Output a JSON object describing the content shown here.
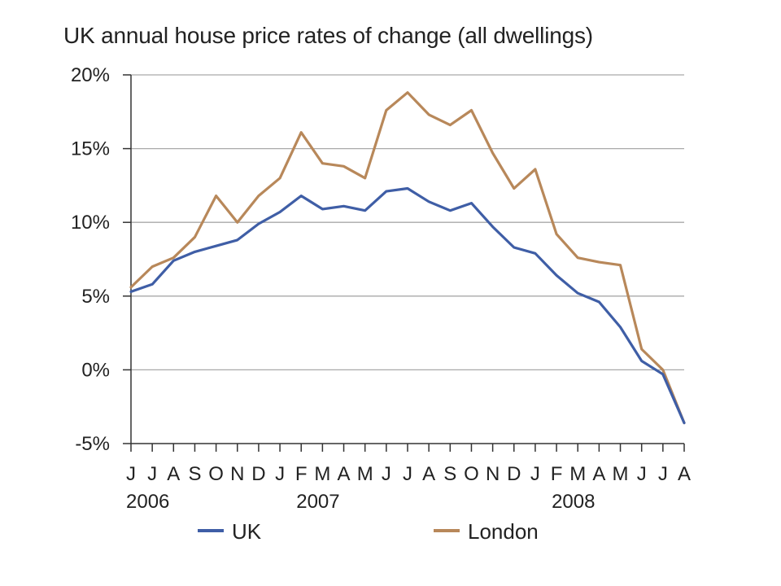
{
  "chart_data": {
    "type": "line",
    "title": "UK annual house price rates of change (all dwellings)",
    "x": [
      "J",
      "J",
      "A",
      "S",
      "O",
      "N",
      "D",
      "J",
      "F",
      "M",
      "A",
      "M",
      "J",
      "J",
      "A",
      "S",
      "O",
      "N",
      "D",
      "J",
      "F",
      "M",
      "A",
      "M",
      "J",
      "J",
      "A"
    ],
    "year_labels": [
      {
        "index": 0,
        "label": "2006"
      },
      {
        "index": 8,
        "label": "2007"
      },
      {
        "index": 20,
        "label": "2008"
      }
    ],
    "yticks": [
      "20%",
      "15%",
      "10%",
      "5%",
      "0%",
      "-5%"
    ],
    "ytick_values": [
      20,
      15,
      10,
      5,
      0,
      -5
    ],
    "ylim": [
      -5,
      20
    ],
    "grid": true,
    "legend_position": "bottom",
    "series": [
      {
        "name": "UK",
        "color": "#3f5ea6",
        "values": [
          5.3,
          5.8,
          7.4,
          8.0,
          8.4,
          8.8,
          9.9,
          10.7,
          11.8,
          10.9,
          11.1,
          10.8,
          12.1,
          12.3,
          11.4,
          10.8,
          11.3,
          9.7,
          8.3,
          7.9,
          6.4,
          5.2,
          4.6,
          2.9,
          0.6,
          -0.3,
          -3.6
        ]
      },
      {
        "name": "London",
        "color": "#b8885a",
        "values": [
          5.6,
          7.0,
          7.6,
          9.0,
          11.8,
          10.0,
          11.8,
          13.0,
          16.1,
          14.0,
          13.8,
          13.0,
          17.6,
          18.8,
          17.3,
          16.6,
          17.6,
          14.7,
          12.3,
          13.6,
          9.2,
          7.6,
          7.3,
          7.1,
          1.4,
          0.0,
          -3.6
        ]
      }
    ]
  }
}
